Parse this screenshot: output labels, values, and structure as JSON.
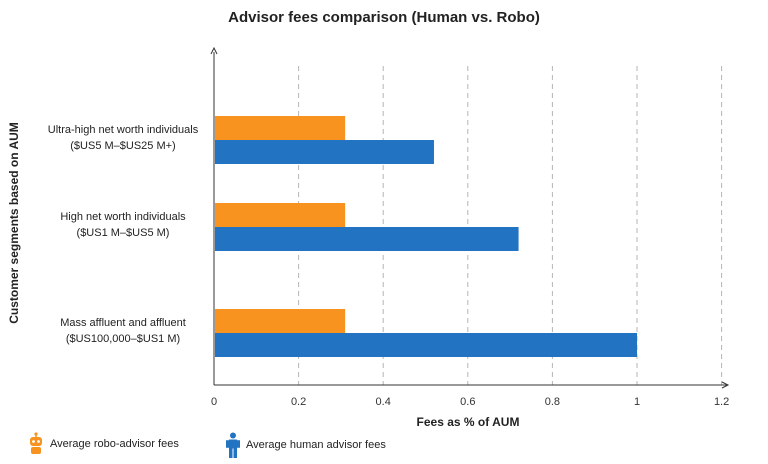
{
  "chart_data": {
    "type": "bar",
    "orientation": "horizontal",
    "title": "Advisor fees comparison (Human vs. Robo)",
    "xlabel": "Fees as % of AUM",
    "ylabel": "Customer segments based on AUM",
    "xlim": [
      0,
      1.2
    ],
    "xticks": [
      "0",
      "0.2",
      "0.4",
      "0.6",
      "0.8",
      "1",
      "1.2"
    ],
    "grid": "vertical dashed",
    "categories": [
      [
        "Ultra-high net worth individuals",
        "($US5 M–$US25 M+)"
      ],
      [
        "High net worth individuals",
        "($US1 M–$US5 M)"
      ],
      [
        "Mass affluent and affluent",
        "($US100,000–$US1 M)"
      ]
    ],
    "series": [
      {
        "name": "Average robo-advisor fees",
        "color": "#f7931e",
        "icon": "robot-icon",
        "values": [
          0.31,
          0.31,
          0.31
        ]
      },
      {
        "name": "Average human advisor fees",
        "color": "#2273c2",
        "icon": "person-icon",
        "values": [
          0.52,
          0.72,
          1.0
        ]
      }
    ],
    "legend_position": "bottom-left"
  }
}
